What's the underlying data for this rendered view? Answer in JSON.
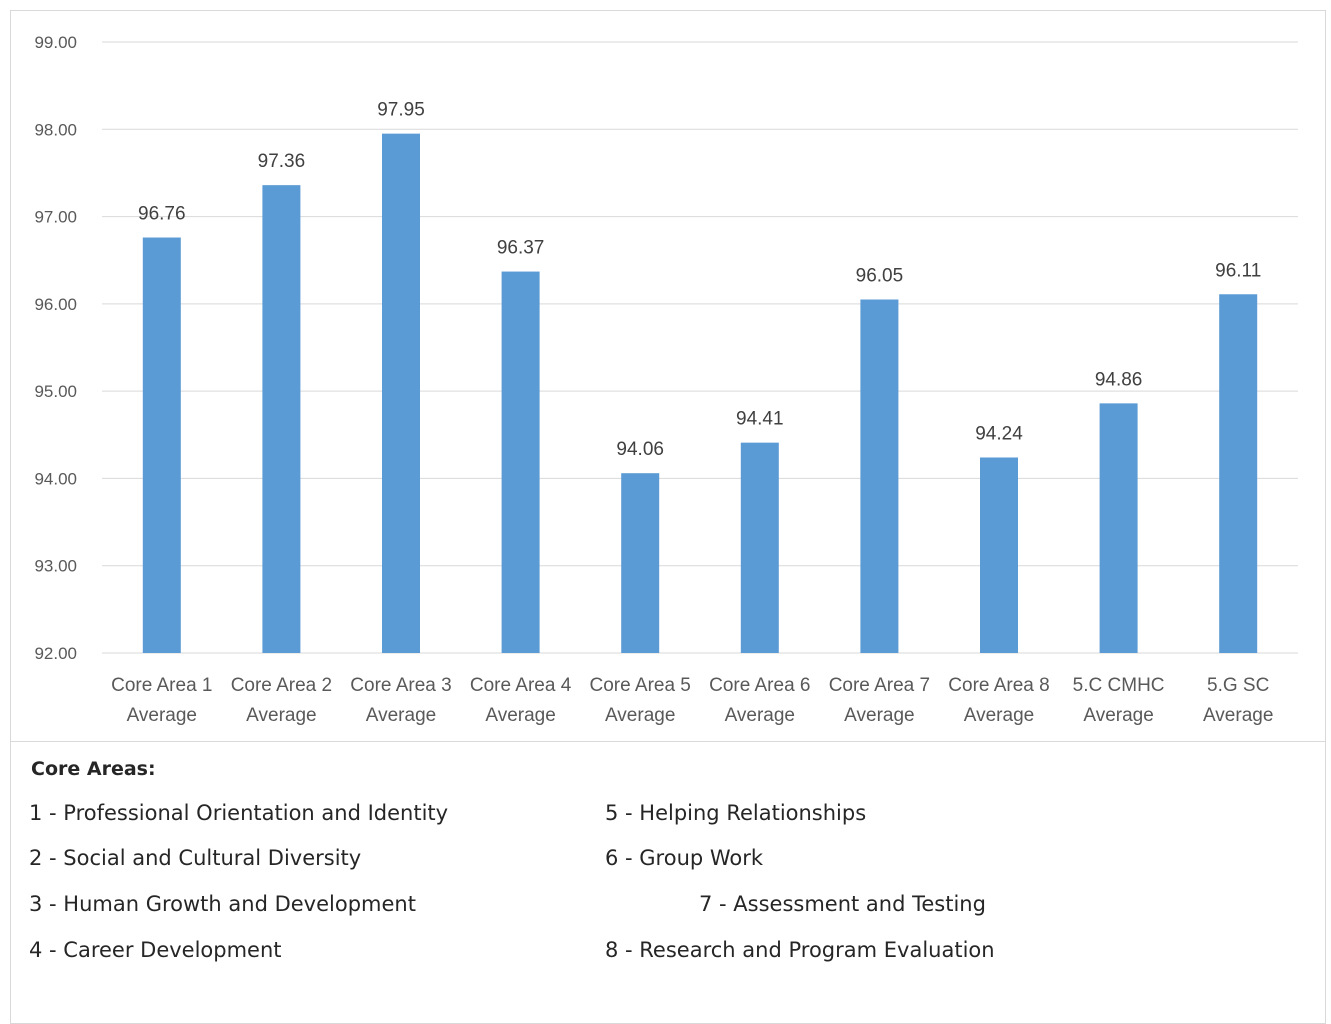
{
  "chart_data": {
    "type": "bar",
    "categories": [
      [
        "Core Area 1",
        "Average"
      ],
      [
        "Core Area 2",
        "Average"
      ],
      [
        "Core Area 3",
        "Average"
      ],
      [
        "Core Area 4",
        "Average"
      ],
      [
        "Core Area 5",
        "Average"
      ],
      [
        "Core Area 6",
        "Average"
      ],
      [
        "Core Area 7",
        "Average"
      ],
      [
        "Core Area 8",
        "Average"
      ],
      [
        "5.C CMHC",
        "Average"
      ],
      [
        "5.G SC",
        "Average"
      ]
    ],
    "values": [
      96.76,
      97.36,
      97.95,
      96.37,
      94.06,
      94.41,
      96.05,
      94.24,
      94.86,
      96.11
    ],
    "data_labels": [
      "96.76",
      "97.36",
      "97.95",
      "96.37",
      "94.06",
      "94.41",
      "96.05",
      "94.24",
      "94.86",
      "96.11"
    ],
    "ylim": [
      92,
      99
    ],
    "yticks": [
      "92.00",
      "93.00",
      "94.00",
      "95.00",
      "96.00",
      "97.00",
      "98.00",
      "99.00"
    ],
    "grid": true,
    "bar_color": "#5b9bd5",
    "gridline_color": "#d9d9d9"
  },
  "legend": {
    "title": "Core Areas:",
    "items": [
      "1 - Professional Orientation and Identity",
      "2 - Social and Cultural Diversity",
      "3 - Human Growth and Development",
      "4 - Career Development",
      "5 - Helping Relationships",
      "6 - Group Work",
      "7 - Assessment and Testing",
      "8 - Research and Program Evaluation"
    ]
  }
}
